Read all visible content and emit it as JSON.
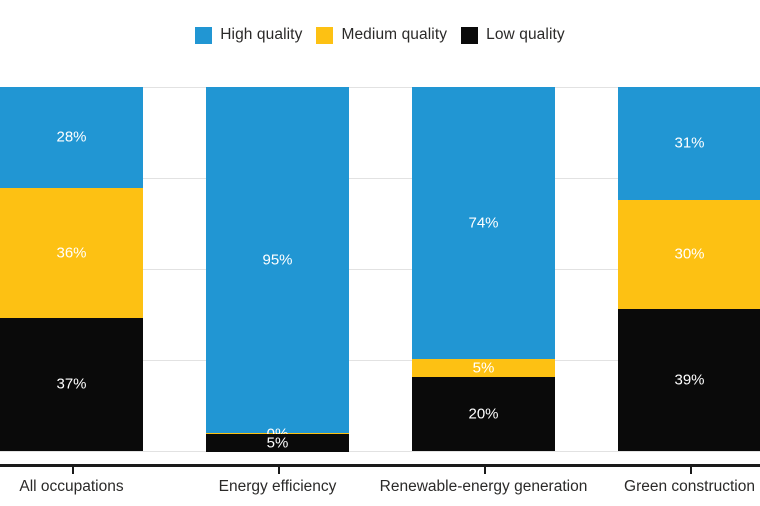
{
  "chart_data": {
    "type": "bar",
    "variant": "stacked-100-percent-column",
    "categories": [
      "All occupations",
      "Energy efficiency",
      "Renewable-energy generation",
      "Green construction"
    ],
    "series": [
      {
        "name": "High quality",
        "color": "#2196d3",
        "values": [
          28,
          95,
          74,
          31
        ]
      },
      {
        "name": "Medium quality",
        "color": "#fdc113",
        "values": [
          36,
          0,
          5,
          30
        ]
      },
      {
        "name": "Low quality",
        "color": "#0a0a0a",
        "values": [
          37,
          5,
          20,
          39
        ]
      }
    ],
    "value_suffix": "%",
    "ylim": [
      0,
      100
    ],
    "grid": {
      "horizontal": true,
      "interval_percent": 25,
      "color": "#e2e2e2"
    },
    "legend_position": "top-center",
    "data_labels": "inside segments, white text"
  },
  "styles": {
    "background": "#ffffff",
    "axis_color": "#1a1a1a",
    "category_label_color": "#2b2a29",
    "legend_label_color": "#2b2a29",
    "value_label_color": "#ffffff",
    "gridline_color": "#e2e2e2"
  }
}
